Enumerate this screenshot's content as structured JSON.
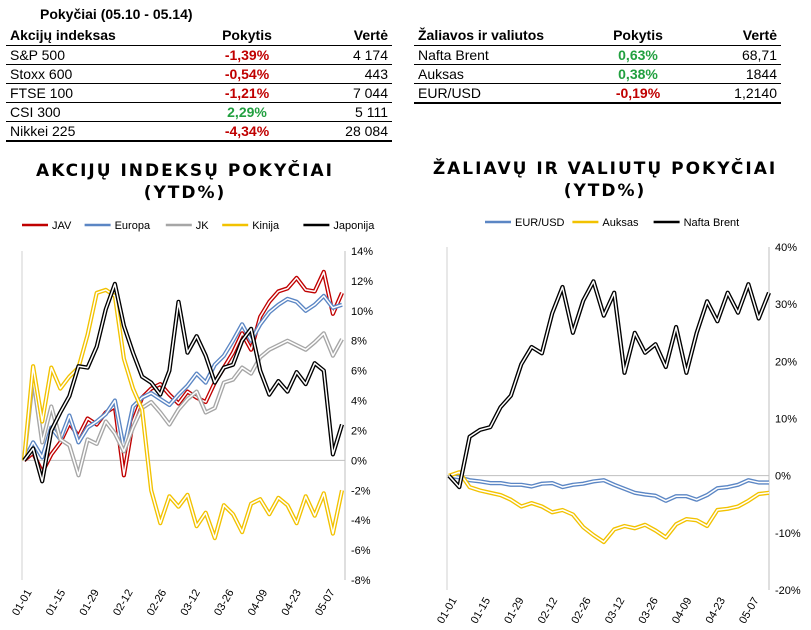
{
  "header": {
    "period": "Pokyčiai (05.10 - 05.14)"
  },
  "table_left": {
    "columns": [
      "Akcijų indeksas",
      "Pokytis",
      "Vertė"
    ],
    "rows": [
      {
        "name": "S&P 500",
        "change": "-1,39%",
        "value": "4 174",
        "sign": "neg"
      },
      {
        "name": "Stoxx 600",
        "change": "-0,54%",
        "value": "443",
        "sign": "neg"
      },
      {
        "name": "FTSE 100",
        "change": "-1,21%",
        "value": "7 044",
        "sign": "neg"
      },
      {
        "name": "CSI 300",
        "change": "2,29%",
        "value": "5 111",
        "sign": "pos"
      },
      {
        "name": "Nikkei 225",
        "change": "-4,34%",
        "value": "28 084",
        "sign": "neg"
      }
    ]
  },
  "table_right": {
    "columns": [
      "Žaliavos ir valiutos",
      "Pokytis",
      "Vertė"
    ],
    "rows": [
      {
        "name": "Nafta Brent",
        "change": "0,63%",
        "value": "68,71",
        "sign": "pos"
      },
      {
        "name": "Auksas",
        "change": "0,38%",
        "value": "1844",
        "sign": "pos"
      },
      {
        "name": "EUR/USD",
        "change": "-0,19%",
        "value": "1,2140",
        "sign": "neg"
      }
    ]
  },
  "chart_data": [
    {
      "type": "line",
      "title_line1": "AKCIJŲ INDEKSŲ POKYČIAI",
      "title_line2": "(YTD%)",
      "y_axis_side": "right",
      "ylim": [
        -8,
        14
      ],
      "y_ticks": [
        -8,
        -6,
        -4,
        -2,
        0,
        2,
        4,
        6,
        8,
        10,
        12,
        14
      ],
      "y_tick_labels": [
        "-8%",
        "-6%",
        "-4%",
        "-2%",
        "0%",
        "2%",
        "4%",
        "6%",
        "8%",
        "10%",
        "12%",
        "14%"
      ],
      "x_tick_labels": [
        "01-01",
        "01-15",
        "01-29",
        "02-12",
        "02-26",
        "03-12",
        "03-26",
        "04-09",
        "04-23",
        "05-07"
      ],
      "legend_position": "top",
      "series": [
        {
          "name": "JAV",
          "color": "#c00000",
          "values": [
            0,
            0.5,
            -0.8,
            0.4,
            1.2,
            2.5,
            1.6,
            2.8,
            2.4,
            3.2,
            3.6,
            -1.0,
            2.6,
            4.2,
            4.8,
            5.1,
            4.4,
            3.8,
            4.6,
            4.2,
            3.9,
            5.2,
            6.2,
            7.2,
            8.5,
            7.4,
            9.6,
            10.6,
            11.3,
            11.5,
            12.2,
            11.4,
            11.3,
            12.6,
            9.8,
            11.2
          ]
        },
        {
          "name": "Europa",
          "color": "#5b86c4",
          "values": [
            0,
            1.2,
            0.2,
            2.2,
            1.4,
            3.0,
            1.2,
            2.2,
            2.6,
            3.1,
            4.0,
            0.8,
            3.6,
            4.2,
            4.5,
            4.1,
            3.7,
            4.4,
            5.0,
            5.8,
            5.2,
            6.4,
            7.0,
            8.0,
            9.1,
            8.0,
            9.1,
            9.9,
            10.4,
            10.8,
            10.6,
            10.0,
            10.4,
            11.0,
            10.2,
            10.4
          ]
        },
        {
          "name": "JK",
          "color": "#a6a6a6",
          "values": [
            0,
            5.5,
            1.2,
            3.6,
            1.4,
            1.0,
            -1.0,
            1.4,
            1.1,
            2.6,
            1.8,
            0.6,
            2.2,
            3.5,
            3.9,
            3.2,
            2.4,
            3.4,
            4.1,
            4.6,
            3.2,
            3.5,
            5.2,
            5.4,
            6.2,
            5.8,
            6.9,
            7.4,
            7.7,
            8.0,
            7.7,
            7.4,
            7.9,
            8.5,
            7.0,
            8.1
          ]
        },
        {
          "name": "Kinija",
          "color": "#f2c200",
          "values": [
            0,
            6.3,
            2.6,
            6.2,
            4.8,
            5.6,
            6.2,
            8.4,
            11.2,
            11.4,
            11.0,
            6.8,
            4.8,
            3.4,
            -2.0,
            -4.2,
            -2.4,
            -3.1,
            -2.3,
            -4.4,
            -3.5,
            -5.2,
            -3.0,
            -3.6,
            -4.8,
            -2.9,
            -2.6,
            -3.6,
            -2.5,
            -3.0,
            -4.2,
            -2.4,
            -3.7,
            -2.2,
            -4.9,
            -2.0
          ]
        },
        {
          "name": "Japonija",
          "color": "#000000",
          "values": [
            0,
            0.8,
            -1.4,
            2.0,
            3.2,
            4.3,
            6.3,
            6.2,
            7.6,
            10.1,
            11.8,
            9.0,
            7.2,
            5.6,
            5.2,
            4.4,
            6.0,
            10.6,
            7.2,
            8.3,
            7.0,
            5.2,
            6.2,
            6.4,
            8.0,
            8.8,
            6.0,
            4.4,
            5.3,
            4.6,
            5.9,
            5.1,
            6.5,
            6.0,
            0.4,
            2.4
          ]
        }
      ]
    },
    {
      "type": "line",
      "title_line1": "ŽALIAVŲ IR VALIUTŲ POKYČIAI",
      "title_line2": "(YTD%)",
      "y_axis_side": "right",
      "ylim": [
        -20,
        40
      ],
      "y_ticks": [
        -20,
        -10,
        0,
        10,
        20,
        30,
        40
      ],
      "y_tick_labels": [
        "-20%",
        "-10%",
        "0%",
        "10%",
        "20%",
        "30%",
        "40%"
      ],
      "x_tick_labels": [
        "01-01",
        "01-15",
        "01-29",
        "02-12",
        "02-26",
        "03-12",
        "03-26",
        "04-09",
        "04-23",
        "05-07"
      ],
      "legend_position": "top",
      "series": [
        {
          "name": "EUR/USD",
          "color": "#5b86c4",
          "values": [
            0,
            -0.3,
            -0.8,
            -1.0,
            -1.3,
            -1.3,
            -1.6,
            -1.6,
            -1.9,
            -1.4,
            -1.3,
            -2.0,
            -1.6,
            -1.4,
            -1.0,
            -0.8,
            -1.6,
            -2.3,
            -3.0,
            -3.3,
            -3.5,
            -4.4,
            -3.6,
            -3.6,
            -4.2,
            -3.4,
            -2.2,
            -2.0,
            -1.6,
            -0.8,
            -1.2,
            -1.2
          ]
        },
        {
          "name": "Auksas",
          "color": "#f2c200",
          "values": [
            0,
            0.6,
            -2.0,
            -2.6,
            -3.0,
            -3.4,
            -4.2,
            -5.4,
            -4.8,
            -5.4,
            -6.4,
            -6.0,
            -6.8,
            -9.0,
            -10.4,
            -11.6,
            -9.4,
            -8.8,
            -9.2,
            -8.6,
            -9.6,
            -10.8,
            -8.5,
            -7.6,
            -7.8,
            -8.8,
            -6.0,
            -5.8,
            -5.4,
            -4.4,
            -3.2,
            -3.0
          ]
        },
        {
          "name": "Nafta Brent",
          "color": "#000000",
          "values": [
            0,
            -2.0,
            6.8,
            8.0,
            8.5,
            12.0,
            14.0,
            19.5,
            22.5,
            21.4,
            28.4,
            33.0,
            25.0,
            30.6,
            34.0,
            28.0,
            32.0,
            18.0,
            25.0,
            21.5,
            23.0,
            19.0,
            26.0,
            18.0,
            25.0,
            30.5,
            27.0,
            32.0,
            28.5,
            33.5,
            27.5,
            32.0
          ]
        }
      ]
    }
  ]
}
